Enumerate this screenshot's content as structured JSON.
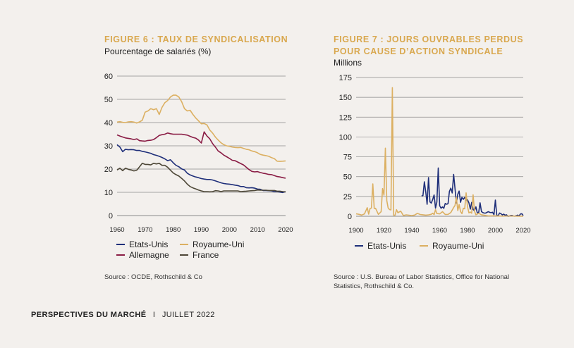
{
  "footer": {
    "left": "PERSPECTIVES DU MARCHÉ",
    "sep": "I",
    "right": "JUILLET 2022"
  },
  "colors": {
    "us": "#1f2f7a",
    "uk": "#dcb062",
    "de": "#8a1c45",
    "fr": "#4d4737",
    "grid": "#8a8a8a",
    "title": "#d9a84f"
  },
  "fig6": {
    "title": "FIGURE 6 : TAUX DE SYNDICALISATION",
    "subtitle": "Pourcentage de salariés (%)",
    "source": "Source : OCDE, Rothschild & Co",
    "chart_data": {
      "type": "line",
      "title": "FIGURE 6 : TAUX DE SYNDICALISATION",
      "ylabel": "Pourcentage de salariés (%)",
      "xlim": [
        1960,
        2020
      ],
      "ylim": [
        0,
        60
      ],
      "yticks": [
        0,
        10,
        20,
        30,
        40,
        50,
        60
      ],
      "xticks": [
        1960,
        1970,
        1980,
        1990,
        2000,
        2010,
        2020
      ],
      "grid": true,
      "legend": "bottom",
      "series": [
        {
          "name": "Etats-Unis",
          "color": "#1f2f7a",
          "x": [
            1960,
            1961,
            1962,
            1963,
            1964,
            1965,
            1966,
            1967,
            1968,
            1969,
            1970,
            1971,
            1972,
            1973,
            1974,
            1975,
            1976,
            1977,
            1978,
            1979,
            1980,
            1981,
            1982,
            1983,
            1984,
            1985,
            1986,
            1987,
            1988,
            1989,
            1990,
            1991,
            1992,
            1993,
            1994,
            1995,
            1996,
            1997,
            1998,
            1999,
            2000,
            2001,
            2002,
            2003,
            2004,
            2005,
            2006,
            2007,
            2008,
            2009,
            2010,
            2011,
            2012,
            2013,
            2014,
            2015,
            2016,
            2017,
            2018,
            2019,
            2020
          ],
          "y": [
            30.5,
            29.5,
            27.5,
            28.5,
            28.3,
            28.4,
            28.3,
            28.0,
            28.0,
            27.6,
            27.4,
            27.1,
            26.8,
            26.2,
            25.9,
            25.5,
            25.0,
            24.4,
            23.6,
            24.0,
            22.7,
            21.6,
            21.0,
            20.1,
            19.6,
            18.2,
            17.5,
            17.0,
            16.6,
            16.3,
            15.9,
            15.7,
            15.5,
            15.5,
            15.3,
            14.9,
            14.5,
            14.1,
            13.8,
            13.6,
            13.5,
            13.3,
            13.1,
            12.9,
            12.5,
            12.5,
            12.0,
            11.9,
            12.0,
            11.8,
            11.4,
            11.3,
            10.8,
            10.8,
            10.7,
            10.6,
            10.3,
            10.3,
            10.1,
            9.9,
            10.3
          ]
        },
        {
          "name": "Royaume-Uni",
          "color": "#dcb062",
          "x": [
            1960,
            1961,
            1962,
            1963,
            1964,
            1965,
            1966,
            1967,
            1968,
            1969,
            1970,
            1971,
            1972,
            1973,
            1974,
            1975,
            1976,
            1977,
            1978,
            1979,
            1980,
            1981,
            1982,
            1983,
            1984,
            1985,
            1986,
            1987,
            1988,
            1989,
            1990,
            1991,
            1992,
            1993,
            1994,
            1995,
            1996,
            1997,
            1998,
            1999,
            2000,
            2001,
            2002,
            2003,
            2004,
            2005,
            2006,
            2007,
            2008,
            2009,
            2010,
            2011,
            2012,
            2013,
            2014,
            2015,
            2016,
            2017,
            2018,
            2019,
            2020
          ],
          "y": [
            40.2,
            40.4,
            40.1,
            40.0,
            40.3,
            40.4,
            40.2,
            39.8,
            40.3,
            41.0,
            44.5,
            45.0,
            46.0,
            45.5,
            46.0,
            43.5,
            46.5,
            48.5,
            49.5,
            51.0,
            51.8,
            51.8,
            51.0,
            49.0,
            46.0,
            45.0,
            45.3,
            43.5,
            42.0,
            40.8,
            39.5,
            39.6,
            39.0,
            36.8,
            35.5,
            33.8,
            32.5,
            31.3,
            30.5,
            30.0,
            29.8,
            29.5,
            29.3,
            29.2,
            29.3,
            28.9,
            28.5,
            28.3,
            27.8,
            27.5,
            27.0,
            26.3,
            26.0,
            25.8,
            25.5,
            24.9,
            24.5,
            23.4,
            23.3,
            23.4,
            23.5
          ]
        },
        {
          "name": "Allemagne",
          "color": "#8a1c45",
          "x": [
            1960,
            1961,
            1962,
            1963,
            1964,
            1965,
            1966,
            1967,
            1968,
            1969,
            1970,
            1971,
            1972,
            1973,
            1974,
            1975,
            1976,
            1977,
            1978,
            1979,
            1980,
            1981,
            1982,
            1983,
            1984,
            1985,
            1986,
            1987,
            1988,
            1989,
            1990,
            1991,
            1992,
            1993,
            1994,
            1995,
            1996,
            1997,
            1998,
            1999,
            2000,
            2001,
            2002,
            2003,
            2004,
            2005,
            2006,
            2007,
            2008,
            2009,
            2010,
            2011,
            2012,
            2013,
            2014,
            2015,
            2016,
            2017,
            2018,
            2019,
            2020
          ],
          "y": [
            34.7,
            34.2,
            33.8,
            33.4,
            33.2,
            33.0,
            32.7,
            33.0,
            32.2,
            32.1,
            32.0,
            32.3,
            32.4,
            32.7,
            33.5,
            34.5,
            34.8,
            35.0,
            35.5,
            35.2,
            35.0,
            35.0,
            35.0,
            35.0,
            34.8,
            34.6,
            34.1,
            33.6,
            33.3,
            32.5,
            31.2,
            36.0,
            34.2,
            33.0,
            31.0,
            29.5,
            27.8,
            27.0,
            26.0,
            25.3,
            24.6,
            23.8,
            23.6,
            23.0,
            22.4,
            21.8,
            20.8,
            19.8,
            19.0,
            18.8,
            18.9,
            18.5,
            18.2,
            18.0,
            17.7,
            17.6,
            17.2,
            16.8,
            16.6,
            16.3,
            16.1
          ]
        },
        {
          "name": "France",
          "color": "#4d4737",
          "x": [
            1960,
            1961,
            1962,
            1963,
            1964,
            1965,
            1966,
            1967,
            1968,
            1969,
            1970,
            1971,
            1972,
            1973,
            1974,
            1975,
            1976,
            1977,
            1978,
            1979,
            1980,
            1981,
            1982,
            1983,
            1984,
            1985,
            1986,
            1987,
            1988,
            1989,
            1990,
            1991,
            1992,
            1993,
            1994,
            1995,
            1996,
            1997,
            1998,
            1999,
            2000,
            2001,
            2002,
            2003,
            2004,
            2005,
            2006,
            2007,
            2008,
            2009,
            2010,
            2011,
            2012,
            2013,
            2014,
            2015,
            2016,
            2017,
            2018,
            2019,
            2020
          ],
          "y": [
            19.6,
            20.4,
            19.3,
            20.4,
            19.9,
            19.6,
            19.2,
            19.5,
            21.0,
            22.5,
            22.0,
            22.0,
            21.8,
            22.5,
            22.2,
            22.5,
            21.6,
            21.6,
            20.8,
            19.5,
            18.3,
            17.6,
            17.0,
            16.0,
            14.9,
            13.5,
            12.5,
            11.9,
            11.5,
            11.0,
            10.6,
            10.3,
            10.3,
            10.2,
            10.3,
            10.7,
            10.6,
            10.3,
            10.6,
            10.6,
            10.6,
            10.6,
            10.6,
            10.6,
            10.3,
            10.4,
            10.5,
            10.6,
            10.7,
            10.8,
            11.0,
            10.9,
            10.9,
            10.9,
            10.8,
            10.8,
            10.8,
            10.5,
            10.5,
            10.3,
            10.2
          ]
        }
      ]
    }
  },
  "fig7": {
    "title_line1": "FIGURE 7 : JOURS OUVRABLES PERDUS",
    "title_line2": "POUR CAUSE D’ACTION SYNDICALE",
    "subtitle": "Millions",
    "source_line1": "Source : U.S. Bureau of Labor Statistics, Office for National",
    "source_line2": "Statistics, Rothschild & Co.",
    "chart_data": {
      "type": "line",
      "title": "FIGURE 7 : JOURS OUVRABLES PERDUS POUR CAUSE D’ACTION SYNDICALE",
      "ylabel": "Millions",
      "xlim": [
        1900,
        2020
      ],
      "ylim": [
        0,
        175
      ],
      "yticks": [
        0,
        25,
        50,
        75,
        100,
        125,
        150,
        175
      ],
      "xticks": [
        1900,
        1920,
        1940,
        1960,
        1980,
        2000,
        2020
      ],
      "grid": true,
      "legend": "bottom",
      "series": [
        {
          "name": "Etats-Unis",
          "color": "#1f2f7a",
          "x": [
            1947,
            1948,
            1949,
            1950,
            1951,
            1952,
            1953,
            1954,
            1955,
            1956,
            1957,
            1958,
            1959,
            1960,
            1961,
            1962,
            1963,
            1964,
            1965,
            1966,
            1967,
            1968,
            1969,
            1970,
            1971,
            1972,
            1973,
            1974,
            1975,
            1976,
            1977,
            1978,
            1979,
            1980,
            1981,
            1982,
            1983,
            1984,
            1985,
            1986,
            1987,
            1988,
            1989,
            1990,
            1991,
            1992,
            1993,
            1994,
            1995,
            1996,
            1997,
            1998,
            1999,
            2000,
            2001,
            2002,
            2003,
            2004,
            2005,
            2006,
            2007,
            2008,
            2009,
            2010,
            2011,
            2012,
            2013,
            2014,
            2015,
            2016,
            2017,
            2018,
            2019,
            2020
          ],
          "y": [
            25.7,
            26.1,
            43.4,
            30.4,
            15.1,
            48.8,
            18.1,
            16.6,
            21.2,
            26.8,
            10.3,
            17.9,
            60.9,
            13.3,
            10.1,
            11.8,
            10.0,
            16.2,
            15.1,
            16.0,
            31.3,
            35.4,
            29.4,
            52.8,
            35.5,
            16.8,
            27.9,
            31.8,
            17.6,
            23.9,
            21.3,
            23.8,
            20.4,
            20.8,
            16.9,
            9.1,
            17.5,
            8.5,
            7.1,
            11.9,
            4.5,
            4.4,
            17.0,
            5.9,
            4.6,
            4.0,
            4.0,
            5.0,
            5.8,
            4.9,
            4.5,
            5.1,
            2.0,
            20.4,
            1.2,
            0.7,
            4.1,
            3.3,
            1.7,
            2.7,
            1.3,
            1.9,
            0.1,
            0.3,
            1.0,
            1.1,
            0.3,
            0.2,
            0.7,
            1.5,
            0.4,
            2.8,
            3.2,
            0.9
          ]
        },
        {
          "name": "Royaume-Uni",
          "color": "#dcb062",
          "x": [
            1900,
            1902,
            1904,
            1906,
            1908,
            1909,
            1910,
            1911,
            1912,
            1913,
            1914,
            1916,
            1918,
            1919,
            1920,
            1921,
            1922,
            1923,
            1924,
            1925,
            1926,
            1927,
            1928,
            1929,
            1930,
            1932,
            1934,
            1936,
            1938,
            1940,
            1942,
            1944,
            1946,
            1948,
            1950,
            1952,
            1954,
            1955,
            1956,
            1957,
            1958,
            1960,
            1962,
            1964,
            1966,
            1968,
            1970,
            1971,
            1972,
            1973,
            1974,
            1975,
            1976,
            1977,
            1978,
            1979,
            1980,
            1981,
            1982,
            1983,
            1984,
            1985,
            1986,
            1988,
            1990,
            1995,
            2000,
            2005,
            2010,
            2015,
            2020
          ],
          "y": [
            3.1,
            2.5,
            1.5,
            3.0,
            10.8,
            2.7,
            9.9,
            10.3,
            40.9,
            9.8,
            10.0,
            2.4,
            5.9,
            34.9,
            26.6,
            85.9,
            19.9,
            10.7,
            8.4,
            8.0,
            162.2,
            1.2,
            1.4,
            8.3,
            4.4,
            6.5,
            1.0,
            1.8,
            1.3,
            0.9,
            1.5,
            3.7,
            2.2,
            1.9,
            1.4,
            1.8,
            2.5,
            3.8,
            2.1,
            8.4,
            3.5,
            3.0,
            5.8,
            2.3,
            2.4,
            4.7,
            11.0,
            13.6,
            23.9,
            7.2,
            14.8,
            6.0,
            3.3,
            10.1,
            9.4,
            29.5,
            12.0,
            4.3,
            5.3,
            3.8,
            27.1,
            6.4,
            1.9,
            3.7,
            1.9,
            0.4,
            0.5,
            0.2,
            0.4,
            0.2,
            0.1
          ]
        }
      ]
    }
  }
}
